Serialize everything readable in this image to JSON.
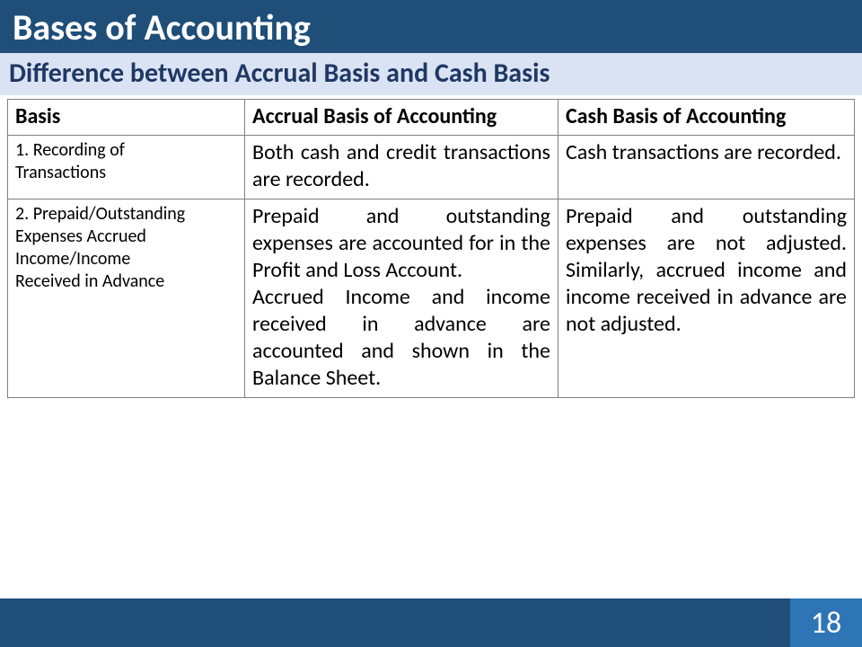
{
  "title": "Bases of Accounting",
  "subtitle": "Difference between Accrual Basis and Cash Basis",
  "colors": {
    "title_bg": "#1f4e79",
    "title_fg": "#ffffff",
    "subtitle_bg": "#dae3f3",
    "subtitle_fg": "#1f3864",
    "border": "#7f7f7f",
    "footer_bg": "#1f4e79",
    "pagebox_bg": "#2e75b6"
  },
  "fonts": {
    "title_size_pt": 30,
    "subtitle_size_pt": 22,
    "header_size_pt": 18,
    "label_size_pt": 15,
    "body_size_pt": 18
  },
  "table": {
    "columns": [
      {
        "key": "basis",
        "label": "Basis",
        "width_pct": 28
      },
      {
        "key": "accrual",
        "label": "Accrual Basis of Accounting",
        "width_pct": 37
      },
      {
        "key": "cash",
        "label": "Cash Basis of Accounting",
        "width_pct": 35
      }
    ],
    "rows": [
      {
        "basis_lines": [
          "1. Recording of",
          "Transactions"
        ],
        "accrual": "Both cash and credit transactions are recorded.",
        "cash": "Cash transactions are recorded."
      },
      {
        "basis_lines": [
          "2. Prepaid/Outstanding",
          "Expenses Accrued",
          "Income/Income",
          "Received in Advance"
        ],
        "accrual": "Prepaid and outstanding expenses are accounted for in the Profit and Loss Account.\nAccrued Income and income received in advance are accounted and shown in the Balance Sheet.",
        "cash": "Prepaid and outstanding expenses are not adjusted. Similarly, accrued income and income received in advance are not adjusted."
      }
    ]
  },
  "page_number": "18"
}
